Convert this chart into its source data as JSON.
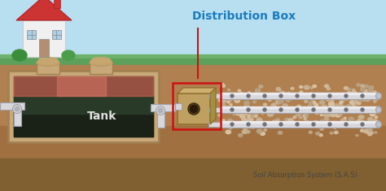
{
  "bg_sky_color": "#b8dff0",
  "bg_grass_color": "#6db36d",
  "bg_grass_dark": "#5ca05c",
  "bg_soil_color": "#b08050",
  "bg_soil_mid": "#a07040",
  "bg_soil_dark": "#806030",
  "title": "Distribution Box",
  "title_color": "#1a7bbf",
  "label_tank": "Tank",
  "label_sas": "Soil Absorption System (S.A.S)",
  "label_tank_color": "#e0e0e0",
  "label_sas_color": "#444444",
  "pipe_color": "#d8d8dc",
  "pipe_edge": "#a0a0a8",
  "pipe_hole": "#707078",
  "tank_outer": "#c8a878",
  "tank_outer_edge": "#a08050",
  "tank_inner_dark": "#1e2820",
  "tank_liquid_pink": "#c06050",
  "dbox_color": "#c0a060",
  "dbox_edge": "#907030",
  "dbox_top": "#d0b070",
  "dbox_right": "#a09040",
  "red_box_color": "#cc1111",
  "arrow_color": "#cc0000"
}
